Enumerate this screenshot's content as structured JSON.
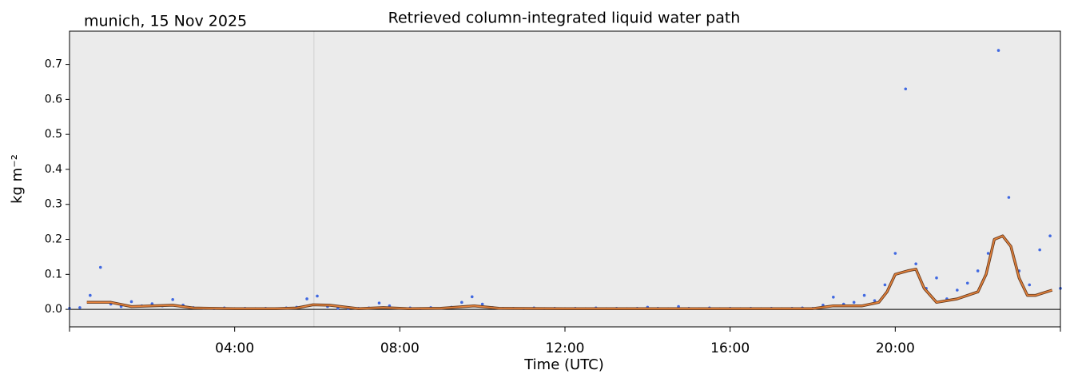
{
  "chart_data": {
    "type": "scatter",
    "title": "Retrieved column-integrated liquid water path",
    "subtitle": "munich, 15 Nov 2025",
    "x_label": "Time (UTC)",
    "y_label": "kg m⁻²",
    "xlim": [
      0,
      24
    ],
    "ylim": [
      -0.05,
      0.795
    ],
    "xticks": [
      {
        "value": 4,
        "label": "04:00"
      },
      {
        "value": 8,
        "label": "08:00"
      },
      {
        "value": 12,
        "label": "12:00"
      },
      {
        "value": 16,
        "label": "16:00"
      },
      {
        "value": 20,
        "label": "20:00"
      }
    ],
    "yticks": [
      {
        "value": 0,
        "label": "0.0"
      },
      0.1,
      0.2,
      0.3,
      0.4,
      0.5,
      0.6,
      0.7
    ],
    "grid": false,
    "background": "#ebebeb",
    "hline": 0,
    "vline": 5.92,
    "series": [
      {
        "type": "scatter",
        "color": "#4169e1",
        "x": [
          0,
          0.25,
          0.5,
          0.75,
          1,
          1.25,
          1.5,
          1.75,
          2,
          2.25,
          2.5,
          2.75,
          3,
          3.25,
          3.5,
          3.75,
          4,
          4.25,
          4.5,
          4.75,
          5,
          5.25,
          5.5,
          5.75,
          6,
          6.25,
          6.5,
          6.75,
          7,
          7.25,
          7.5,
          7.75,
          8,
          8.25,
          8.5,
          8.75,
          9,
          9.25,
          9.5,
          9.75,
          10,
          10.25,
          10.5,
          10.75,
          11,
          11.25,
          11.5,
          11.75,
          12,
          12.25,
          12.5,
          12.75,
          13,
          13.25,
          13.5,
          13.75,
          14,
          14.25,
          14.5,
          14.75,
          15,
          15.25,
          15.5,
          15.75,
          16,
          16.25,
          16.5,
          16.75,
          17,
          17.25,
          17.5,
          17.75,
          18,
          18.25,
          18.5,
          18.75,
          19,
          19.25,
          19.5,
          19.75,
          20,
          20.25,
          20.5,
          20.75,
          21,
          21.25,
          21.5,
          21.75,
          22,
          22.25,
          22.5,
          22.75,
          23,
          23.25,
          23.5,
          23.75,
          24
        ],
        "values": [
          0.003,
          0.005,
          0.04,
          0.12,
          0.015,
          0.008,
          0.022,
          0.01,
          0.016,
          0.01,
          0.028,
          0.012,
          0.005,
          0.003,
          0.002,
          0.004,
          0.002,
          0.003,
          0.002,
          0.003,
          0.002,
          0.004,
          0.006,
          0.03,
          0.038,
          0.008,
          0.003,
          0.002,
          0.003,
          0.004,
          0.018,
          0.01,
          0.003,
          0.004,
          0.002,
          0.005,
          0.003,
          0.006,
          0.02,
          0.036,
          0.015,
          0.005,
          0.003,
          0.003,
          0.002,
          0.004,
          0.002,
          0.003,
          0.002,
          0.003,
          0.002,
          0.004,
          0.002,
          0.003,
          0.002,
          0.003,
          0.006,
          0.003,
          0.002,
          0.008,
          0.003,
          0.002,
          0.004,
          0.002,
          0.003,
          0.002,
          0.003,
          0.002,
          0.003,
          0.002,
          0.003,
          0.004,
          0.003,
          0.012,
          0.035,
          0.015,
          0.02,
          0.04,
          0.025,
          0.07,
          0.16,
          0.63,
          0.13,
          0.06,
          0.09,
          0.03,
          0.055,
          0.075,
          0.11,
          0.16,
          0.74,
          0.32,
          0.11,
          0.07,
          0.17,
          0.21,
          0.06
        ]
      },
      {
        "type": "line",
        "color": "#e8843c",
        "outline": "#6b3f22",
        "x": [
          0.42,
          1,
          1.5,
          2,
          2.5,
          3,
          4,
          5,
          5.5,
          5.9,
          6.3,
          7,
          7.6,
          8.2,
          9,
          9.8,
          10.4,
          12,
          14,
          16,
          18,
          18.5,
          19.2,
          19.6,
          19.8,
          20,
          20.3,
          20.5,
          20.7,
          21,
          21.5,
          22,
          22.2,
          22.4,
          22.6,
          22.8,
          23,
          23.2,
          23.4,
          23.8
        ],
        "values": [
          0.02,
          0.02,
          0.008,
          0.01,
          0.012,
          0.004,
          0.002,
          0.002,
          0.004,
          0.013,
          0.012,
          0.002,
          0.005,
          0.002,
          0.003,
          0.01,
          0.003,
          0.002,
          0.002,
          0.002,
          0.002,
          0.01,
          0.01,
          0.02,
          0.05,
          0.1,
          0.11,
          0.115,
          0.06,
          0.02,
          0.03,
          0.05,
          0.1,
          0.2,
          0.21,
          0.18,
          0.09,
          0.04,
          0.04,
          0.055
        ]
      }
    ]
  }
}
